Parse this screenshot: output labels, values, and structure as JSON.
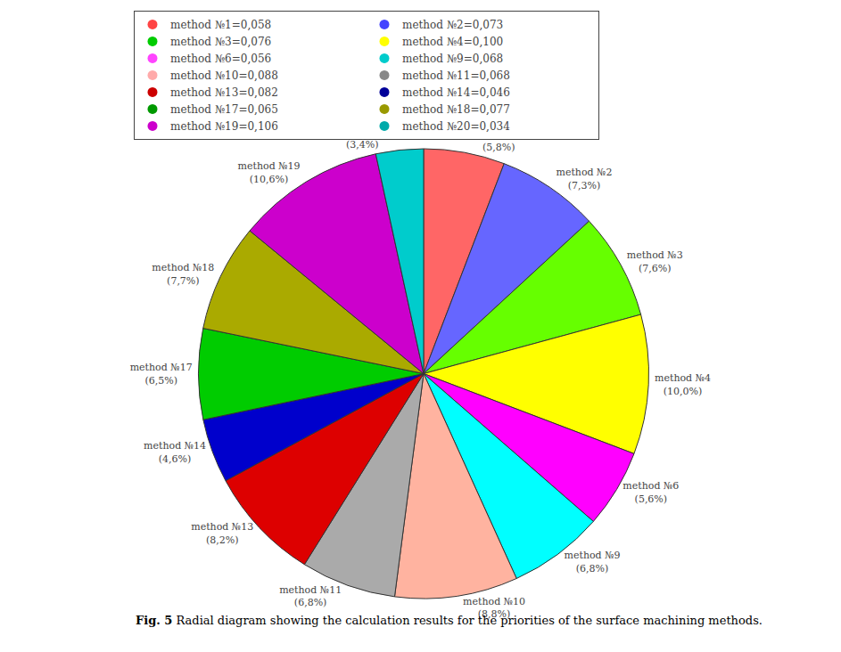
{
  "chart_data": {
    "type": "pie",
    "title": "Fig. 5",
    "subtitle": "Radial diagram showing the calculation results for the priorities of the surface machining methods.",
    "categories": [
      "method №1",
      "method №2",
      "method №3",
      "method №4",
      "method №6",
      "method №9",
      "method №10",
      "method №11",
      "method №13",
      "method №14",
      "method №17",
      "method №18",
      "method №19",
      "method №20"
    ],
    "values": [
      5.8,
      7.3,
      7.6,
      10.0,
      5.6,
      6.8,
      8.8,
      6.8,
      8.2,
      4.6,
      6.5,
      7.7,
      10.6,
      3.4
    ],
    "value_labels": [
      "(5,8%)",
      "(7,3%)",
      "(7,6%)",
      "(10,0%)",
      "(5,6%)",
      "(6,8%)",
      "(8,8%)",
      "(6,8%)",
      "(8,2%)",
      "(4,6%)",
      "(6,5%)",
      "(7,7%)",
      "(10,6%)",
      "(3,4%)"
    ],
    "colors": [
      "#FF6666",
      "#6666FF",
      "#66FF00",
      "#FFFF00",
      "#FF00FF",
      "#00FFFF",
      "#FFB3A0",
      "#AAAAAA",
      "#DD0000",
      "#0000CC",
      "#00CC00",
      "#AAAA00",
      "#CC00CC",
      "#00CCCC"
    ],
    "series": [
      {
        "name": "method №1=0,058",
        "color": "#FF4444"
      },
      {
        "name": "method №2=0,073",
        "color": "#4444FF"
      },
      {
        "name": "method №3=0,076",
        "color": "#00CC00"
      },
      {
        "name": "method №4=0,100",
        "color": "#FFFF00"
      },
      {
        "name": "method №6=0,056",
        "color": "#FF44FF"
      },
      {
        "name": "method №9=0,068",
        "color": "#00CCCC"
      },
      {
        "name": "method №10=0,088",
        "color": "#FFAAAA"
      },
      {
        "name": "method №11=0,068",
        "color": "#888888"
      },
      {
        "name": "method №13=0,082",
        "color": "#CC0000"
      },
      {
        "name": "method №14=0,046",
        "color": "#000099"
      },
      {
        "name": "method №17=0,065",
        "color": "#009900"
      },
      {
        "name": "method №18=0,077",
        "color": "#999900"
      },
      {
        "name": "method №19=0,106",
        "color": "#CC00CC"
      },
      {
        "name": "method №20=0,034",
        "color": "#00AAAA"
      }
    ],
    "legend": "top"
  }
}
